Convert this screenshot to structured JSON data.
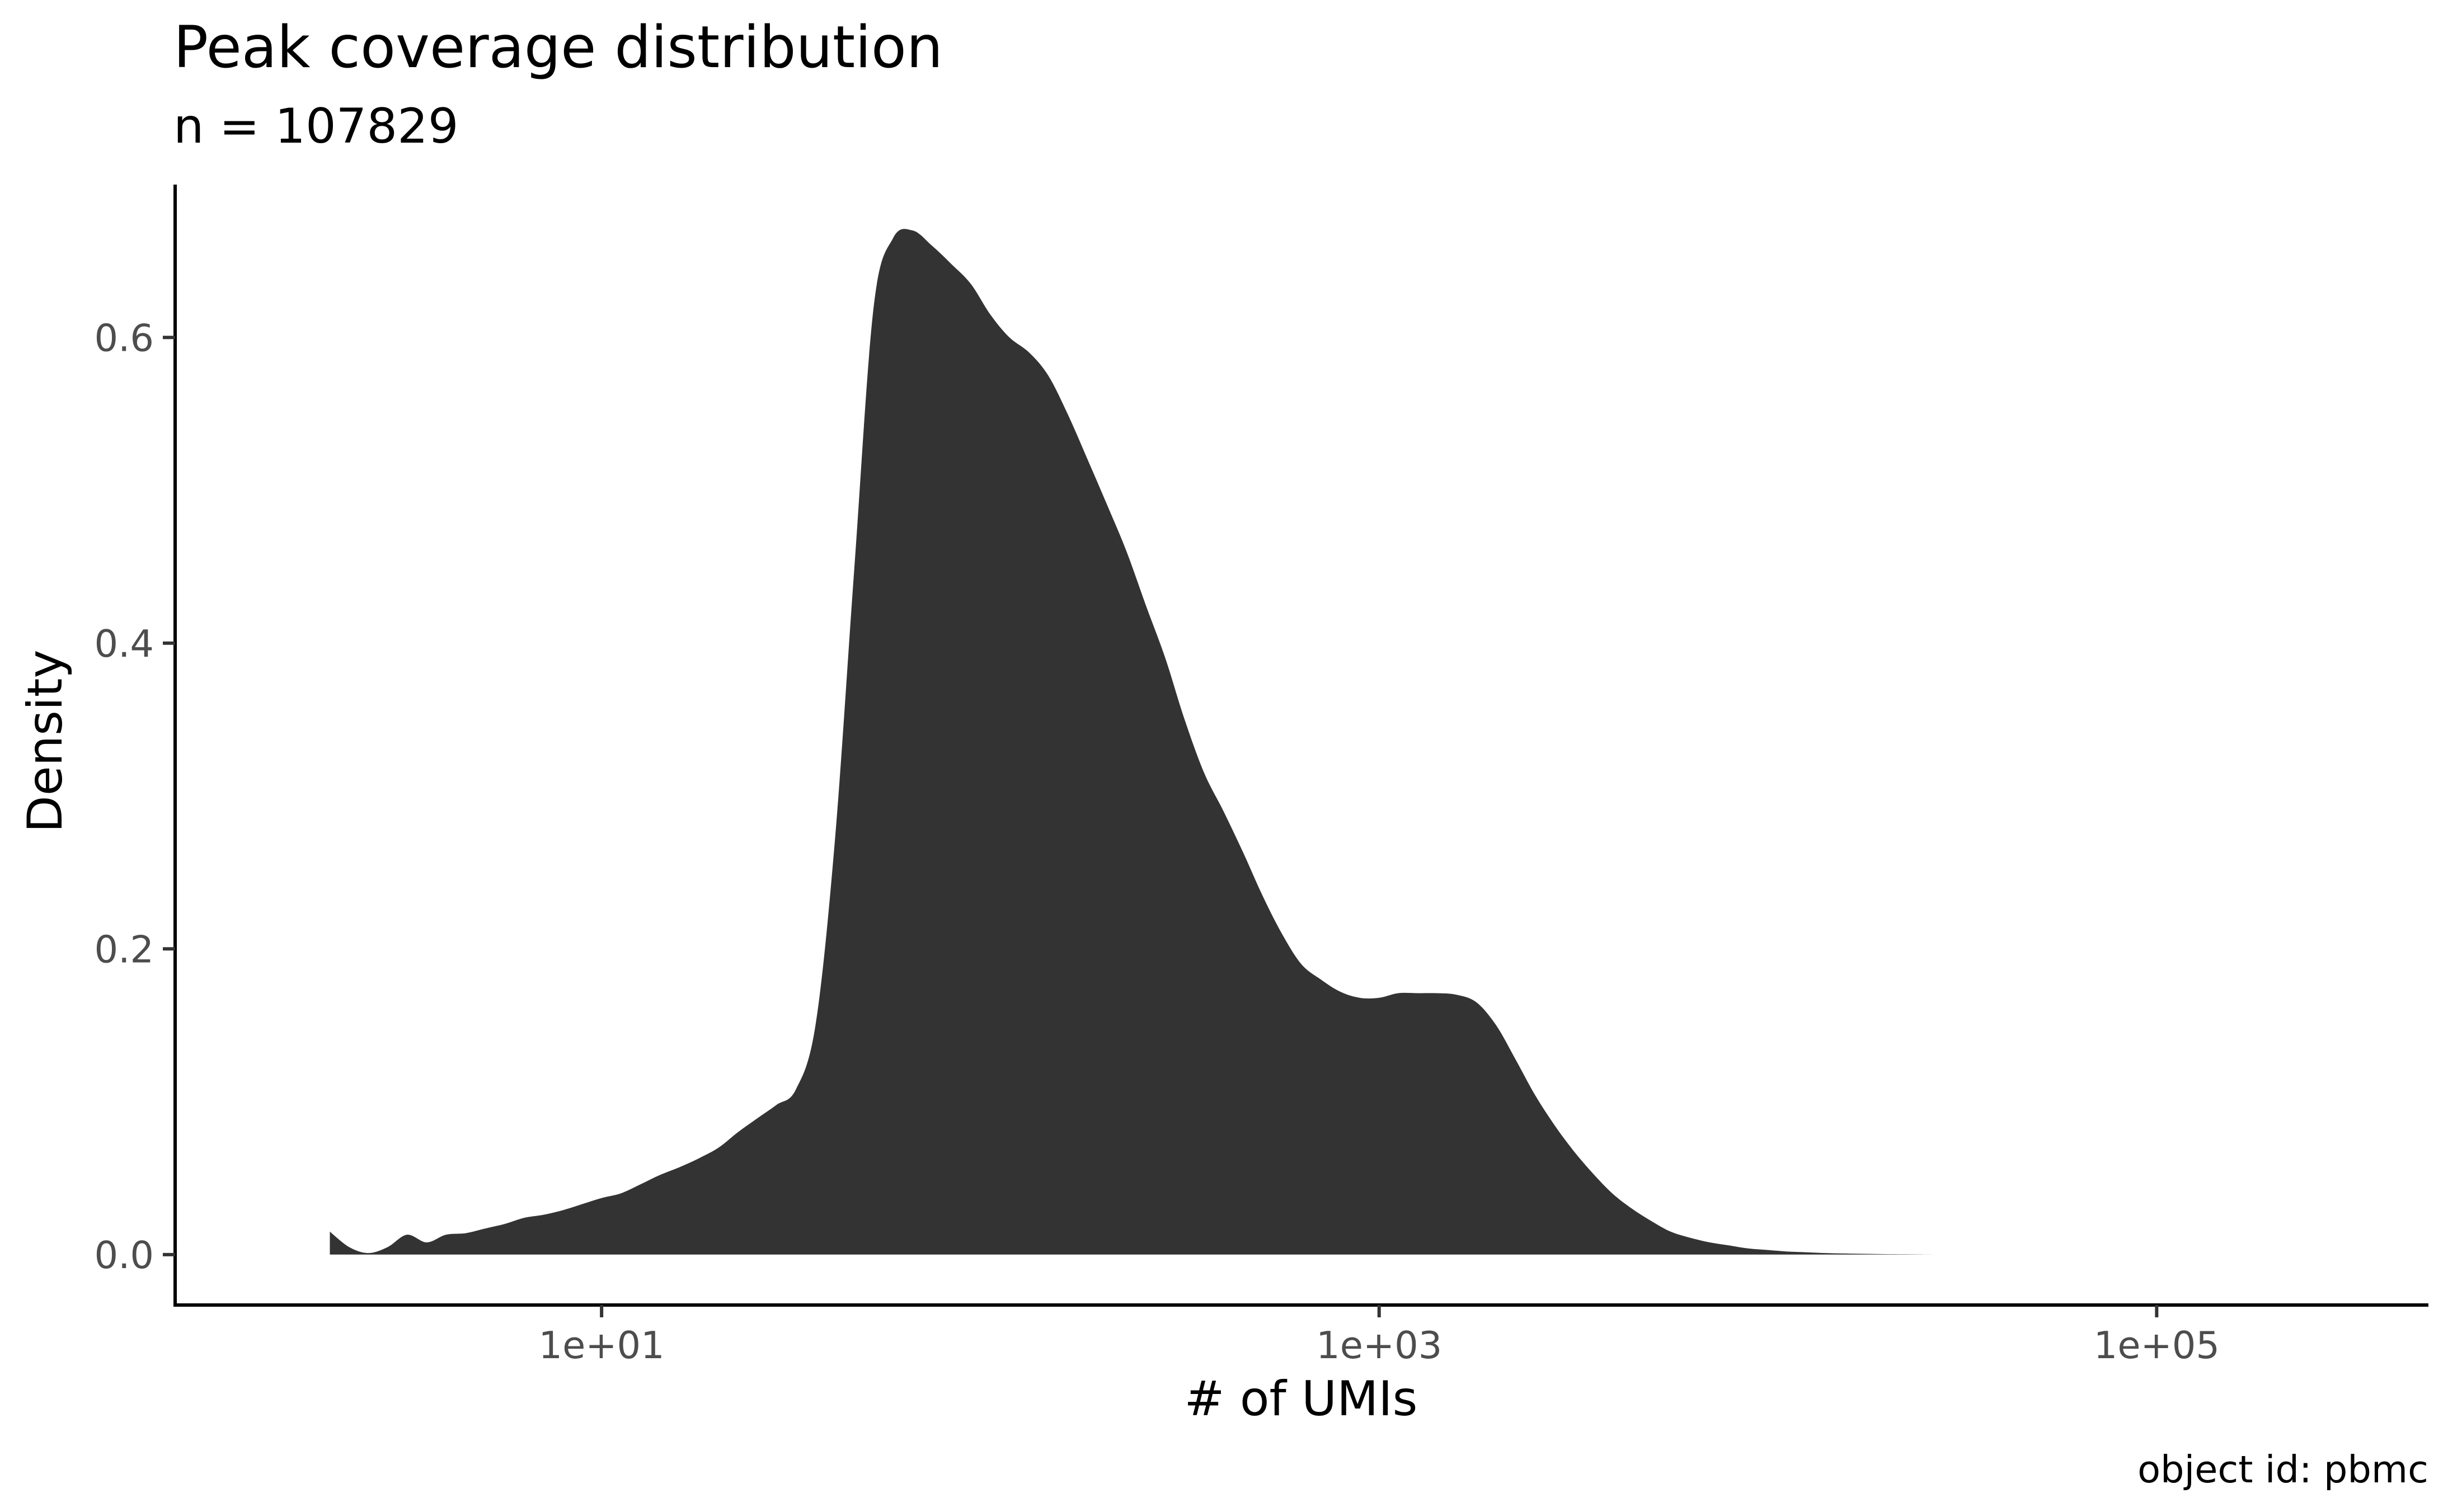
{
  "chart_data": {
    "type": "area",
    "title": "Peak coverage distribution",
    "subtitle": "n = 107829",
    "xlabel": "# of UMIs",
    "ylabel": "Density",
    "caption": "object id: pbmc",
    "x_scale": "log10",
    "x_ticks": [
      {
        "value": 10,
        "label": "1e+01"
      },
      {
        "value": 1000,
        "label": "1e+03"
      },
      {
        "value": 100000,
        "label": "1e+05"
      }
    ],
    "y_ticks": [
      {
        "value": 0.0,
        "label": "0.0"
      },
      {
        "value": 0.2,
        "label": "0.2"
      },
      {
        "value": 0.4,
        "label": "0.4"
      },
      {
        "value": 0.6,
        "label": "0.6"
      }
    ],
    "xlim": [
      0.8,
      500000
    ],
    "ylim": [
      -0.033,
      0.7
    ],
    "grid": false,
    "legend": "none",
    "fill_color": "#333333",
    "series": [
      {
        "x": [
          2.0,
          2.24,
          2.51,
          2.82,
          3.16,
          3.55,
          3.98,
          4.47,
          5.01,
          5.62,
          6.31,
          7.08,
          7.94,
          8.91,
          10,
          11.2,
          12.6,
          14.1,
          15.8,
          17.8,
          20.0,
          22.4,
          25.1,
          28.2,
          31.6,
          35.5,
          39.8,
          44.7,
          50.1,
          56.2,
          63.1,
          70.8,
          79.4,
          89.1,
          100,
          112,
          126,
          141,
          158,
          178,
          200,
          224,
          251,
          282,
          316,
          355,
          398,
          447,
          501,
          562,
          631,
          708,
          794,
          891,
          1000,
          1120,
          1260,
          1410,
          1580,
          1780,
          2000,
          2240,
          2510,
          2820,
          3160,
          3550,
          3980,
          4470,
          5010,
          5620,
          6310,
          7080,
          7940,
          8910,
          10000,
          11200,
          12600,
          14100,
          15800,
          17800,
          20000,
          22400,
          25100,
          28200,
          31600,
          35500,
          39800,
          44700,
          50100,
          56200,
          63100,
          70800,
          79400,
          89100,
          100000,
          126000,
          158000,
          200000,
          251000,
          316000
        ],
        "y": [
          0.015,
          0.005,
          0.001,
          0.005,
          0.013,
          0.008,
          0.013,
          0.014,
          0.017,
          0.02,
          0.024,
          0.026,
          0.029,
          0.033,
          0.037,
          0.04,
          0.046,
          0.052,
          0.057,
          0.063,
          0.07,
          0.08,
          0.089,
          0.098,
          0.108,
          0.15,
          0.27,
          0.45,
          0.62,
          0.665,
          0.67,
          0.66,
          0.648,
          0.635,
          0.615,
          0.6,
          0.59,
          0.575,
          0.55,
          0.52,
          0.49,
          0.46,
          0.425,
          0.39,
          0.35,
          0.315,
          0.29,
          0.263,
          0.235,
          0.21,
          0.19,
          0.18,
          0.172,
          0.168,
          0.168,
          0.171,
          0.171,
          0.171,
          0.17,
          0.165,
          0.15,
          0.128,
          0.105,
          0.085,
          0.068,
          0.053,
          0.04,
          0.03,
          0.022,
          0.015,
          0.011,
          0.008,
          0.006,
          0.004,
          0.003,
          0.002,
          0.0015,
          0.001,
          0.0007,
          0.0005,
          0.0003,
          0.0002,
          0.0001,
          0.0,
          0.0,
          0.0,
          0.0,
          0.0,
          0.0,
          0.0,
          0.0,
          0.0,
          0.0,
          0.0,
          0.0,
          0.0,
          0.0,
          0.0,
          0.0,
          0.0
        ]
      }
    ]
  }
}
